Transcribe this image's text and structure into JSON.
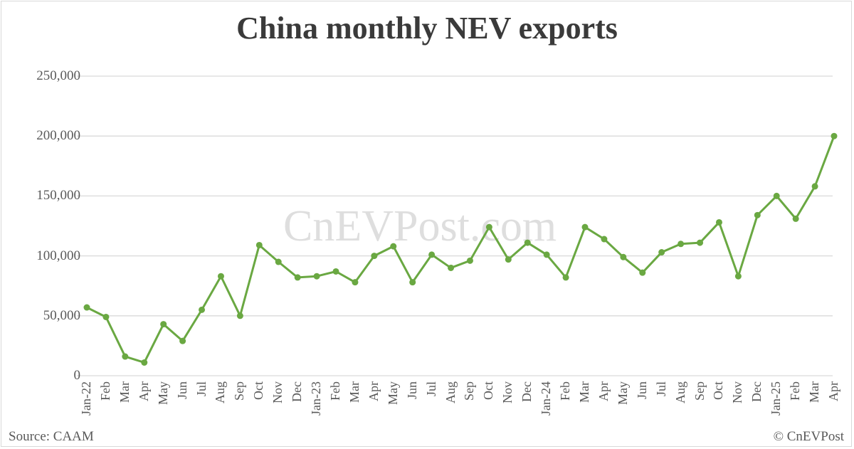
{
  "chart_data": {
    "type": "line",
    "title": "China monthly NEV exports",
    "xlabel": "",
    "ylabel": "",
    "ylim": [
      0,
      250000
    ],
    "yticks": [
      0,
      50000,
      100000,
      150000,
      200000,
      250000
    ],
    "ytick_labels": [
      "0",
      "50,000",
      "100,000",
      "150,000",
      "200,000",
      "250,000"
    ],
    "grid": true,
    "legend": null,
    "categories": [
      "Jan-22",
      "Feb",
      "Mar",
      "Apr",
      "May",
      "Jun",
      "Jul",
      "Aug",
      "Sep",
      "Oct",
      "Nov",
      "Dec",
      "Jan-23",
      "Feb",
      "Mar",
      "Apr",
      "May",
      "Jun",
      "Jul",
      "Aug",
      "Sep",
      "Oct",
      "Nov",
      "Dec",
      "Jan-24",
      "Feb",
      "Mar",
      "Apr",
      "May",
      "Jun",
      "Jul",
      "Aug",
      "Sep",
      "Oct",
      "Nov",
      "Dec",
      "Jan-25",
      "Feb",
      "Mar",
      "Apr"
    ],
    "series": [
      {
        "name": "NEV exports",
        "color": "#6aa842",
        "values": [
          57000,
          49000,
          16000,
          11000,
          43000,
          29000,
          55000,
          83000,
          50000,
          109000,
          95000,
          82000,
          83000,
          87000,
          78000,
          100000,
          108000,
          78000,
          101000,
          90000,
          96000,
          124000,
          97000,
          111000,
          101000,
          82000,
          124000,
          114000,
          99000,
          86000,
          103000,
          110000,
          111000,
          128000,
          83000,
          134000,
          150000,
          131000,
          158000,
          200000
        ]
      }
    ]
  },
  "header": {
    "title": "China monthly NEV exports"
  },
  "watermark": "CnEVPost.com",
  "footer": {
    "source": "Source: CAAM",
    "copyright": "© CnEVPost"
  },
  "colors": {
    "line": "#6aa842",
    "grid": "#d9d9d9",
    "text": "#595959",
    "title": "#3a3a3a"
  }
}
